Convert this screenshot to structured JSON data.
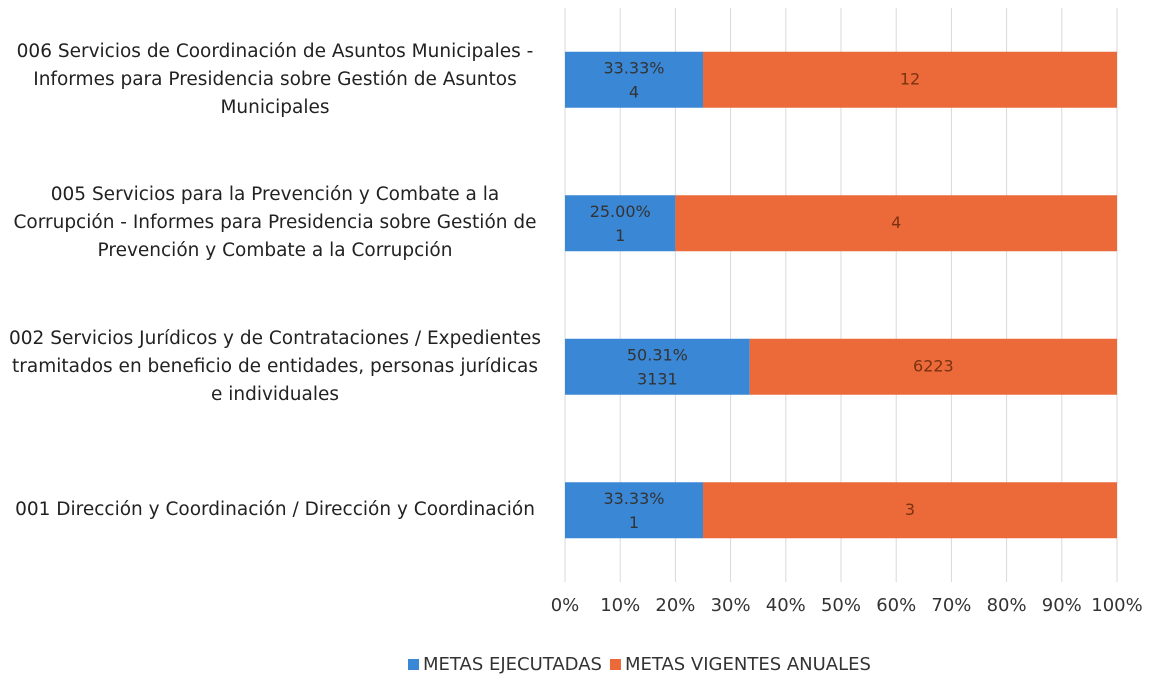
{
  "chart_data": {
    "type": "bar",
    "orientation": "horizontal",
    "stacking": "percent",
    "categories": [
      "006 Servicios de Coordinación de Asuntos Municipales - Informes para Presidencia sobre Gestión de Asuntos Municipales",
      "005 Servicios para la Prevención y  Combate a la Corrupción - Informes para Presidencia sobre Gestión de Prevención y Combate a la Corrupción",
      "002 Servicios Jurídicos y de Contrataciones / Expedientes tramitados en beneficio de entidades, personas jurídicas e individuales",
      "001 Dirección y Coordinación / Dirección y Coordinación"
    ],
    "series": [
      {
        "name": "METAS EJECUTADAS",
        "color": "#3a87d6",
        "values": [
          4,
          1,
          3131,
          1
        ],
        "percent_labels": [
          "33.33%",
          "25.00%",
          "50.31%",
          "33.33%"
        ]
      },
      {
        "name": "METAS VIGENTES ANUALES",
        "color": "#ec6a3a",
        "values": [
          12,
          4,
          6223,
          3
        ]
      }
    ],
    "xlim": [
      0,
      100
    ],
    "xticks": [
      {
        "value": 0,
        "label": "0%"
      },
      {
        "value": 10,
        "label": "10%"
      },
      {
        "value": 20,
        "label": "20%"
      },
      {
        "value": 30,
        "label": "30%"
      },
      {
        "value": 40,
        "label": "40%"
      },
      {
        "value": 50,
        "label": "50%"
      },
      {
        "value": 60,
        "label": "60%"
      },
      {
        "value": 70,
        "label": "70%"
      },
      {
        "value": 80,
        "label": "80%"
      },
      {
        "value": 90,
        "label": "90%"
      },
      {
        "value": 100,
        "label": "100%"
      }
    ],
    "grid": true,
    "legend": "bottom"
  }
}
